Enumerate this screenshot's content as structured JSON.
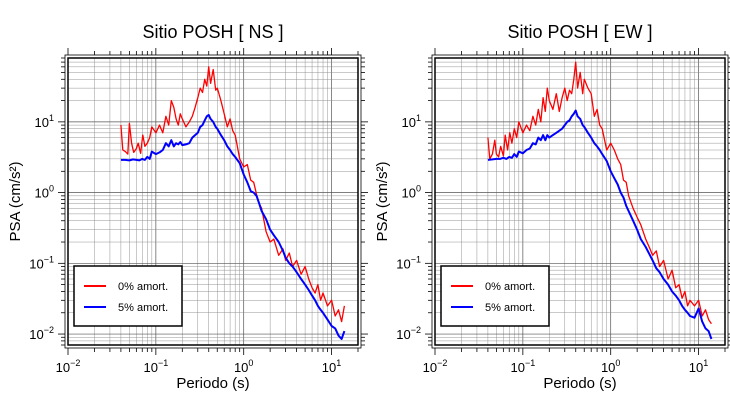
{
  "chart_data": [
    {
      "type": "line",
      "title": "Sitio POSH [ NS ]",
      "xlabel": "Periodo (s)",
      "ylabel": "PSA (cm/s²)",
      "x_scale": "log",
      "y_scale": "log",
      "xlim": [
        0.01,
        20
      ],
      "ylim": [
        0.007,
        80
      ],
      "x_ticks": [
        {
          "value": 0.01,
          "base": "10",
          "exp": "−2"
        },
        {
          "value": 0.1,
          "base": "10",
          "exp": "−1"
        },
        {
          "value": 1,
          "base": "10",
          "exp": "0"
        },
        {
          "value": 10,
          "base": "10",
          "exp": "1"
        }
      ],
      "y_ticks": [
        {
          "value": 0.01,
          "base": "10",
          "exp": "−2"
        },
        {
          "value": 0.1,
          "base": "10",
          "exp": "−1"
        },
        {
          "value": 1,
          "base": "10",
          "exp": "0"
        },
        {
          "value": 10,
          "base": "10",
          "exp": "1"
        }
      ],
      "grid": true,
      "legend_position": "bottom-left",
      "series": [
        {
          "name": "0% amort.",
          "color": "#ff0000",
          "x": [
            0.04,
            0.042,
            0.045,
            0.048,
            0.05,
            0.053,
            0.056,
            0.06,
            0.063,
            0.067,
            0.071,
            0.075,
            0.08,
            0.085,
            0.09,
            0.1,
            0.11,
            0.12,
            0.13,
            0.14,
            0.15,
            0.16,
            0.17,
            0.18,
            0.19,
            0.2,
            0.22,
            0.24,
            0.26,
            0.28,
            0.3,
            0.32,
            0.34,
            0.36,
            0.38,
            0.4,
            0.42,
            0.45,
            0.48,
            0.5,
            0.55,
            0.6,
            0.65,
            0.7,
            0.75,
            0.8,
            0.9,
            1.0,
            1.1,
            1.2,
            1.3,
            1.4,
            1.5,
            1.6,
            1.8,
            2.0,
            2.2,
            2.5,
            2.8,
            3.0,
            3.3,
            3.6,
            4.0,
            4.5,
            5.0,
            5.5,
            6.0,
            6.5,
            7.0,
            7.5,
            8.0,
            9.0,
            10.0,
            11.0,
            12.0,
            13.0,
            14.0
          ],
          "y": [
            9.0,
            4.0,
            3.8,
            3.5,
            9.5,
            5.0,
            3.7,
            4.2,
            5.0,
            3.6,
            6.5,
            4.5,
            5.0,
            6.0,
            8.5,
            7.0,
            9.0,
            7.0,
            12.0,
            9.0,
            20.0,
            16.0,
            11.0,
            9.0,
            13.0,
            11.0,
            8.5,
            10.0,
            12.0,
            16.0,
            22.0,
            30.0,
            26.0,
            40.0,
            32.0,
            60.0,
            35.0,
            55.0,
            28.0,
            30.0,
            20.0,
            13.0,
            8.5,
            11.0,
            7.5,
            6.5,
            3.0,
            2.3,
            2.5,
            1.5,
            1.4,
            0.95,
            0.7,
            0.6,
            0.28,
            0.2,
            0.22,
            0.13,
            0.16,
            0.11,
            0.14,
            0.09,
            0.11,
            0.07,
            0.09,
            0.06,
            0.045,
            0.038,
            0.05,
            0.03,
            0.038,
            0.025,
            0.03,
            0.018,
            0.022,
            0.015,
            0.025
          ]
        },
        {
          "name": "5% amort.",
          "color": "#0000ff",
          "x": [
            0.04,
            0.045,
            0.05,
            0.055,
            0.06,
            0.065,
            0.07,
            0.075,
            0.08,
            0.085,
            0.09,
            0.1,
            0.11,
            0.12,
            0.13,
            0.14,
            0.15,
            0.16,
            0.17,
            0.18,
            0.19,
            0.2,
            0.22,
            0.24,
            0.26,
            0.28,
            0.3,
            0.32,
            0.34,
            0.36,
            0.38,
            0.4,
            0.42,
            0.45,
            0.48,
            0.5,
            0.55,
            0.6,
            0.65,
            0.7,
            0.75,
            0.8,
            0.9,
            1.0,
            1.1,
            1.2,
            1.3,
            1.4,
            1.5,
            1.6,
            1.8,
            2.0,
            2.2,
            2.5,
            2.8,
            3.0,
            3.3,
            3.6,
            4.0,
            4.5,
            5.0,
            5.5,
            6.0,
            6.5,
            7.0,
            7.5,
            8.0,
            9.0,
            10.0,
            11.0,
            12.0,
            13.0,
            14.0
          ],
          "y": [
            2.9,
            2.9,
            2.85,
            2.95,
            2.9,
            2.85,
            3.0,
            2.9,
            3.2,
            3.0,
            3.8,
            3.5,
            3.7,
            4.0,
            5.0,
            4.5,
            5.5,
            4.5,
            5.0,
            4.8,
            5.2,
            4.7,
            4.8,
            5.0,
            6.0,
            6.5,
            7.0,
            8.5,
            9.0,
            10.5,
            12.0,
            12.5,
            11.0,
            10.0,
            8.5,
            8.0,
            6.5,
            5.5,
            4.5,
            4.0,
            3.5,
            3.2,
            2.6,
            1.8,
            1.4,
            1.05,
            1.0,
            0.9,
            0.7,
            0.55,
            0.42,
            0.3,
            0.25,
            0.2,
            0.15,
            0.12,
            0.1,
            0.09,
            0.075,
            0.06,
            0.05,
            0.042,
            0.035,
            0.03,
            0.025,
            0.022,
            0.02,
            0.016,
            0.013,
            0.012,
            0.0095,
            0.0085,
            0.011
          ]
        }
      ]
    },
    {
      "type": "line",
      "title": "Sitio POSH [ EW ]",
      "xlabel": "Periodo (s)",
      "ylabel": "PSA (cm/s²)",
      "x_scale": "log",
      "y_scale": "log",
      "xlim": [
        0.01,
        20
      ],
      "ylim": [
        0.007,
        80
      ],
      "x_ticks": [
        {
          "value": 0.01,
          "base": "10",
          "exp": "−2"
        },
        {
          "value": 0.1,
          "base": "10",
          "exp": "−1"
        },
        {
          "value": 1,
          "base": "10",
          "exp": "0"
        },
        {
          "value": 10,
          "base": "10",
          "exp": "1"
        }
      ],
      "y_ticks": [
        {
          "value": 0.01,
          "base": "10",
          "exp": "−2"
        },
        {
          "value": 0.1,
          "base": "10",
          "exp": "−1"
        },
        {
          "value": 1,
          "base": "10",
          "exp": "0"
        },
        {
          "value": 10,
          "base": "10",
          "exp": "1"
        }
      ],
      "grid": true,
      "legend_position": "bottom-left",
      "series": [
        {
          "name": "0% amort.",
          "color": "#ff0000",
          "x": [
            0.04,
            0.042,
            0.045,
            0.048,
            0.05,
            0.053,
            0.056,
            0.06,
            0.063,
            0.067,
            0.071,
            0.075,
            0.08,
            0.085,
            0.09,
            0.1,
            0.11,
            0.12,
            0.13,
            0.14,
            0.15,
            0.16,
            0.17,
            0.18,
            0.19,
            0.2,
            0.22,
            0.24,
            0.26,
            0.28,
            0.3,
            0.32,
            0.34,
            0.36,
            0.38,
            0.4,
            0.42,
            0.45,
            0.48,
            0.5,
            0.55,
            0.6,
            0.65,
            0.7,
            0.75,
            0.8,
            0.9,
            1.0,
            1.1,
            1.2,
            1.3,
            1.4,
            1.5,
            1.6,
            1.8,
            2.0,
            2.2,
            2.5,
            2.8,
            3.0,
            3.3,
            3.6,
            4.0,
            4.5,
            5.0,
            5.5,
            6.0,
            6.5,
            7.0,
            7.5,
            8.0,
            9.0,
            10.0,
            11.0,
            12.0,
            13.0,
            14.0
          ],
          "y": [
            6.0,
            3.0,
            3.5,
            5.5,
            3.5,
            3.2,
            4.5,
            3.3,
            6.5,
            4.0,
            7.0,
            5.0,
            8.0,
            6.0,
            10.0,
            7.0,
            9.0,
            7.5,
            12.0,
            9.0,
            15.0,
            10.0,
            22.0,
            14.0,
            30.0,
            20.0,
            15.0,
            25.0,
            14.0,
            22.0,
            30.0,
            20.0,
            28.0,
            25.0,
            40.0,
            70.0,
            30.0,
            50.0,
            25.0,
            40.0,
            30.0,
            25.0,
            12.0,
            15.0,
            9.0,
            8.0,
            4.0,
            5.0,
            4.0,
            3.0,
            2.5,
            1.5,
            1.4,
            0.9,
            0.6,
            0.45,
            0.35,
            0.22,
            0.16,
            0.13,
            0.15,
            0.09,
            0.11,
            0.06,
            0.08,
            0.045,
            0.05,
            0.032,
            0.04,
            0.025,
            0.03,
            0.025,
            0.03,
            0.018,
            0.022,
            0.016,
            0.014
          ]
        },
        {
          "name": "5% amort.",
          "color": "#0000ff",
          "x": [
            0.04,
            0.045,
            0.05,
            0.055,
            0.06,
            0.065,
            0.07,
            0.075,
            0.08,
            0.085,
            0.09,
            0.1,
            0.11,
            0.12,
            0.13,
            0.14,
            0.15,
            0.16,
            0.17,
            0.18,
            0.19,
            0.2,
            0.22,
            0.24,
            0.26,
            0.28,
            0.3,
            0.32,
            0.34,
            0.36,
            0.38,
            0.4,
            0.42,
            0.45,
            0.48,
            0.5,
            0.55,
            0.6,
            0.65,
            0.7,
            0.75,
            0.8,
            0.9,
            1.0,
            1.1,
            1.2,
            1.3,
            1.4,
            1.5,
            1.6,
            1.8,
            2.0,
            2.2,
            2.5,
            2.8,
            3.0,
            3.3,
            3.6,
            4.0,
            4.5,
            5.0,
            5.5,
            6.0,
            6.5,
            7.0,
            7.5,
            8.0,
            9.0,
            10.0,
            11.0,
            12.0,
            13.0,
            14.0
          ],
          "y": [
            2.9,
            2.95,
            3.0,
            3.0,
            3.1,
            3.0,
            3.2,
            3.1,
            3.5,
            3.2,
            3.8,
            3.6,
            4.0,
            4.2,
            5.0,
            4.8,
            6.0,
            5.5,
            6.5,
            5.5,
            6.5,
            6.0,
            6.5,
            7.0,
            7.5,
            8.0,
            9.0,
            10.0,
            10.5,
            12.0,
            13.0,
            14.5,
            12.0,
            11.0,
            9.0,
            8.5,
            7.0,
            6.0,
            5.0,
            4.5,
            4.0,
            3.5,
            2.8,
            2.0,
            1.6,
            1.3,
            1.0,
            0.85,
            0.65,
            0.55,
            0.4,
            0.3,
            0.22,
            0.17,
            0.13,
            0.11,
            0.085,
            0.075,
            0.06,
            0.05,
            0.04,
            0.035,
            0.03,
            0.025,
            0.022,
            0.02,
            0.018,
            0.017,
            0.023,
            0.015,
            0.012,
            0.011,
            0.0085
          ]
        }
      ]
    }
  ]
}
